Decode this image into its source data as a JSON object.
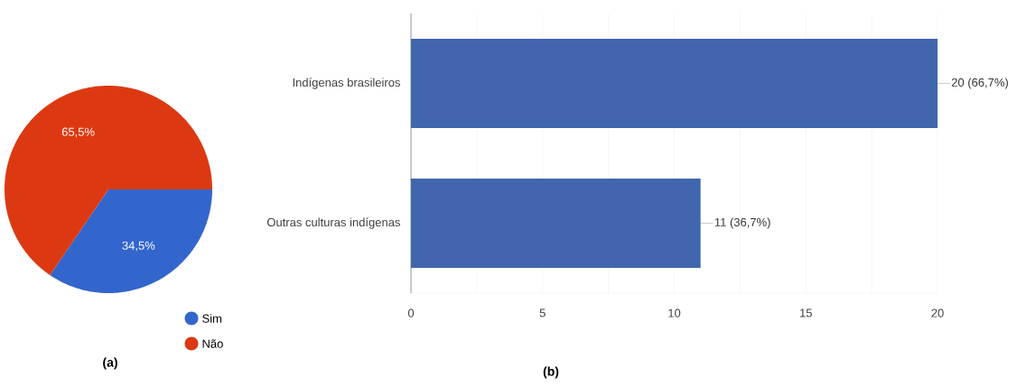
{
  "chart_data": [
    {
      "type": "pie",
      "title": "(a)",
      "categories": [
        "Sim",
        "Não"
      ],
      "values": [
        34.5,
        65.5
      ],
      "colors": [
        "#3366cc",
        "#dc3912"
      ],
      "value_labels": [
        "34,5%",
        "65,5%"
      ],
      "legend": "bottom right"
    },
    {
      "type": "bar",
      "orientation": "horizontal",
      "title": "(b)",
      "categories": [
        "Indígenas brasileiros",
        "Outras culturas indígenas"
      ],
      "values": [
        20,
        11
      ],
      "color": "#4166ae",
      "value_labels": [
        "20 (66,7%)",
        "11 (36,7%)"
      ],
      "xlim": [
        0,
        20
      ],
      "xticks": [
        0,
        {
          "value": 2.5,
          "label": null
        },
        5,
        {
          "value": 7.5,
          "label": null
        },
        10,
        {
          "value": 12.5,
          "label": null
        },
        15,
        {
          "value": 17.5,
          "label": null
        },
        20
      ],
      "grid": "x",
      "legend": false
    }
  ]
}
